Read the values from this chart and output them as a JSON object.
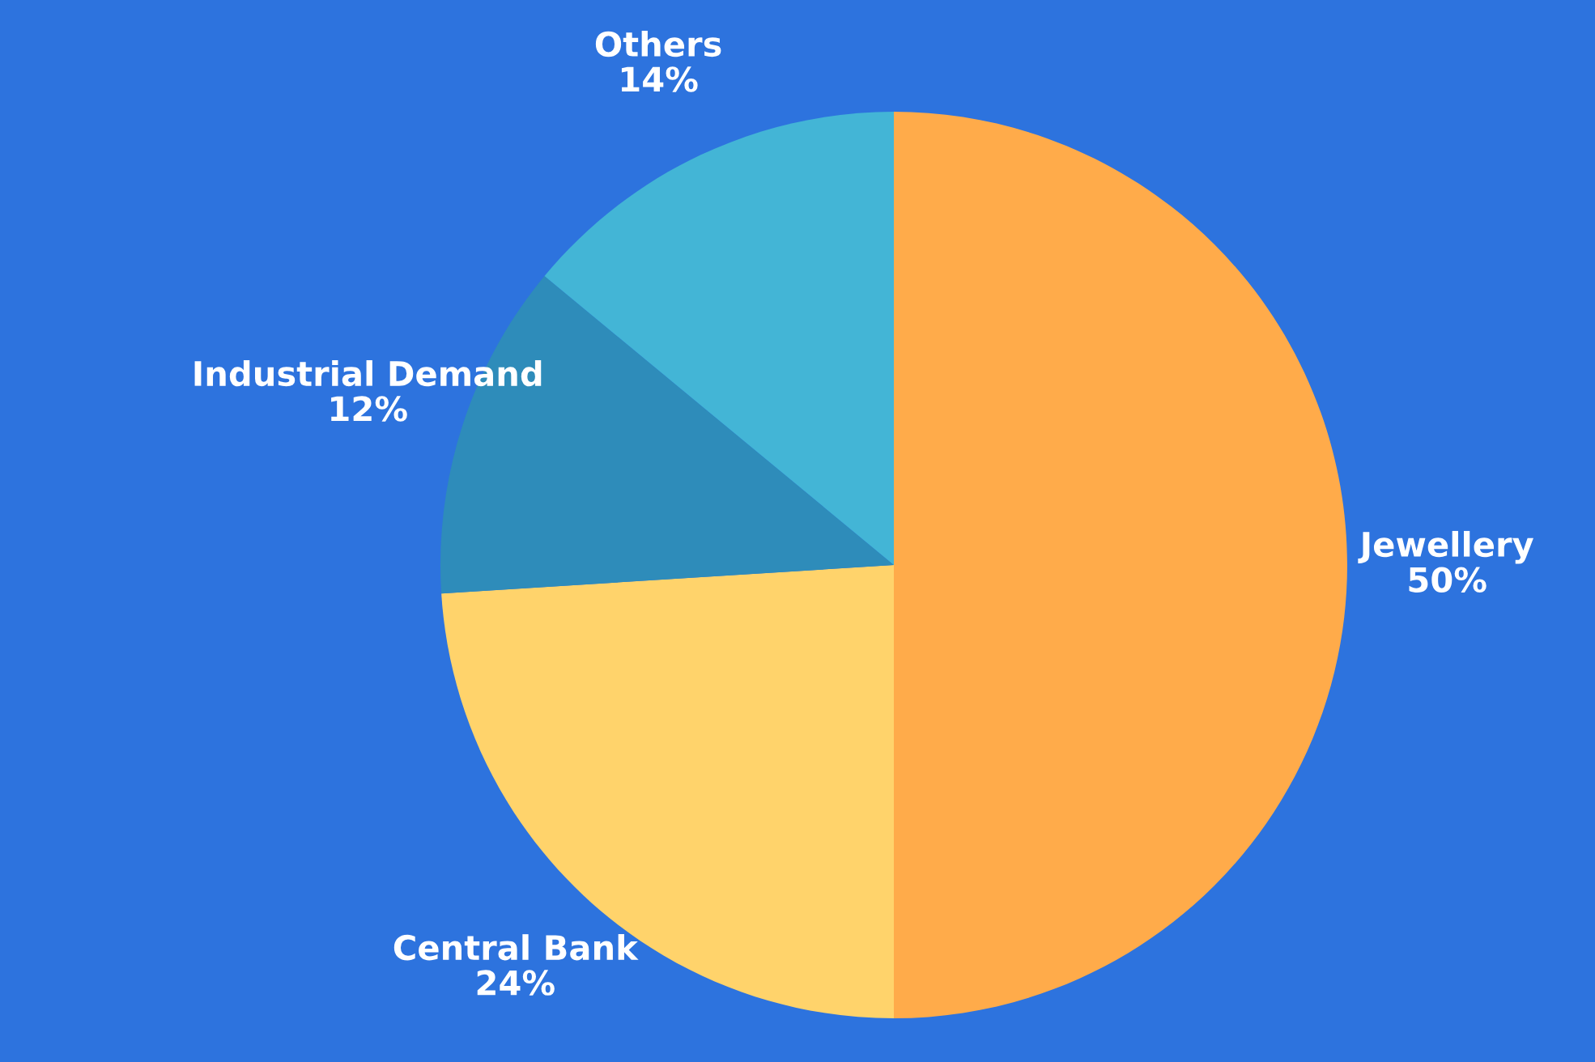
{
  "chart_data": {
    "type": "pie",
    "categories": [
      "Jewellery",
      "Central Bank",
      "Industrial Demand",
      "Others"
    ],
    "values": [
      50,
      24,
      12,
      14
    ],
    "colors": [
      "#ffab4a",
      "#ffd36b",
      "#2e8cba",
      "#43b5d6"
    ],
    "value_labels": [
      "50%",
      "24%",
      "12%",
      "14%"
    ]
  }
}
